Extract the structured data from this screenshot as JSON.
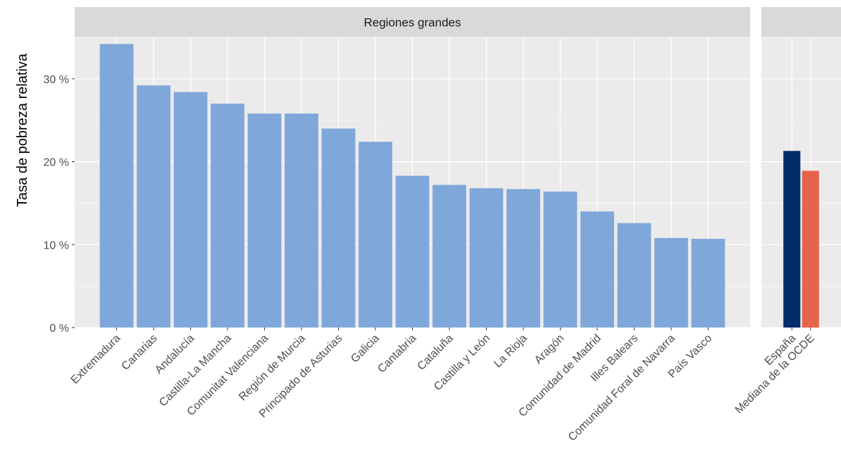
{
  "chart_data": {
    "type": "bar",
    "ylabel": "Tasa de pobreza relativa",
    "xlabel": "",
    "ylim": [
      0,
      35
    ],
    "yticks": [
      0,
      10,
      20,
      30
    ],
    "ytick_labels": [
      "0 %",
      "10 %",
      "20 %",
      "30 %"
    ],
    "grid": true,
    "panels": [
      {
        "strip": "Regiones grandes",
        "categories": [
          "Extremadura",
          "Canarias",
          "Andalucía",
          "Castilla-La Mancha",
          "Comunitat Valenciana",
          "Región de Murcia",
          "Principado de Asturias",
          "Galicia",
          "Cantabria",
          "Cataluña",
          "Castilla y León",
          "La Rioja",
          "Aragón",
          "Comunidad de Madrid",
          "Illes Balears",
          "Comunidad Foral de Navarra",
          "País Vasco"
        ],
        "values": [
          34.2,
          29.2,
          28.4,
          27.0,
          25.8,
          25.8,
          24.0,
          22.4,
          18.3,
          17.2,
          16.8,
          16.7,
          16.4,
          14.0,
          12.6,
          10.8,
          10.7
        ],
        "colors": [
          "#7fa7d9",
          "#7fa7d9",
          "#7fa7d9",
          "#7fa7d9",
          "#7fa7d9",
          "#7fa7d9",
          "#7fa7d9",
          "#7fa7d9",
          "#7fa7d9",
          "#7fa7d9",
          "#7fa7d9",
          "#7fa7d9",
          "#7fa7d9",
          "#7fa7d9",
          "#7fa7d9",
          "#7fa7d9",
          "#7fa7d9"
        ]
      },
      {
        "strip": "",
        "categories": [
          "España",
          "Mediana de la OCDE"
        ],
        "values": [
          21.3,
          18.9
        ],
        "colors": [
          "#002d6a",
          "#e5644b"
        ]
      }
    ]
  },
  "colors": {
    "panel_background": "#ebebeb",
    "strip_background": "#d9d9d9",
    "grid_major": "#ffffff"
  }
}
